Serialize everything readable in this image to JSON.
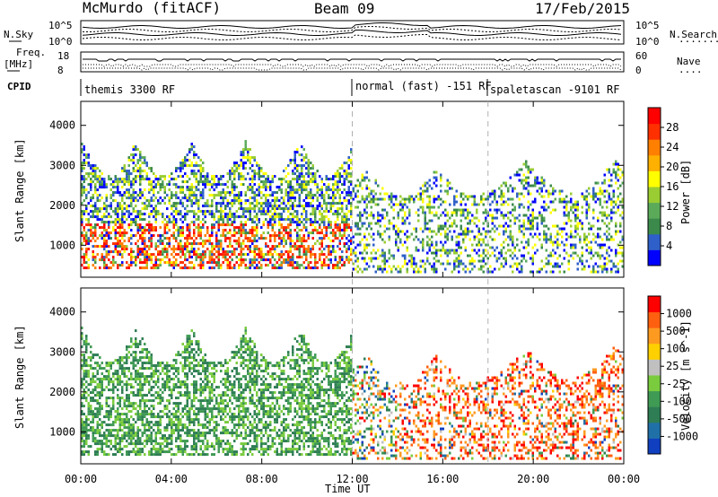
{
  "header": {
    "title": "McMurdo (fitACF)",
    "beam": "Beam 09",
    "date": "17/Feb/2015"
  },
  "status_panels": {
    "nsky_label": "N.Sky",
    "nsearch_label": "N.Search",
    "noise_ticks_left": [
      "10^5",
      "10^0"
    ],
    "noise_ticks_right": [
      "10^5",
      "10^0"
    ],
    "freq_label_1": "Freq.",
    "freq_label_2": "[MHz]",
    "freq_ticks": [
      "18",
      "8"
    ],
    "nave_label": "Nave",
    "nave_ticks": [
      "60",
      "0"
    ],
    "cpid_label": "CPID",
    "modes": [
      {
        "text": "themis 3300 RF"
      },
      {
        "text": "normal (fast) -151 RF"
      },
      {
        "text": "spaletascan -9101 RF"
      }
    ]
  },
  "colors": {
    "frame": "#000000",
    "dashed_line": "#b0b0b0",
    "power_scale": [
      "#0000ff",
      "#2f5fc8",
      "#3b8a4b",
      "#5aaa5a",
      "#9acd32",
      "#ffff00",
      "#ffb000",
      "#ff7f00",
      "#ff3000",
      "#ff0000"
    ],
    "velocity_scale": [
      "#1040c0",
      "#2070a8",
      "#2e7d54",
      "#3f9a54",
      "#7acc3e",
      "#c0c0c0",
      "#ffd000",
      "#ff9a20",
      "#ff6010",
      "#ff0000"
    ]
  },
  "x_axis": {
    "title": "Time UT",
    "ticks": [
      "00:00",
      "04:00",
      "08:00",
      "12:00",
      "16:00",
      "20:00",
      "00:00"
    ]
  },
  "chart_data": [
    {
      "type": "heatmap",
      "title": "",
      "quantity": "Power",
      "xlabel": "Time UT",
      "ylabel": "Slant Range [km]",
      "yticks": [
        1000,
        2000,
        3000,
        4000
      ],
      "ylim": [
        200,
        4600
      ],
      "xlim_hours": [
        0,
        24
      ],
      "colorbar": {
        "label": "Power [dB]",
        "ticks": [
          "28",
          "24",
          "20",
          "16",
          "12",
          "8",
          "4"
        ],
        "range": [
          0,
          30
        ]
      },
      "mode_boundaries_hours": [
        12,
        18
      ]
    },
    {
      "type": "heatmap",
      "title": "",
      "quantity": "Velocity",
      "xlabel": "Time UT",
      "ylabel": "Slant Range [km]",
      "yticks": [
        1000,
        2000,
        3000,
        4000
      ],
      "ylim": [
        200,
        4600
      ],
      "xlim_hours": [
        0,
        24
      ],
      "colorbar": {
        "label": "Velocity [m s^-1]",
        "ticks": [
          "1000",
          "500",
          "100",
          "25",
          "-25",
          "-100",
          "-500",
          "-1000"
        ]
      },
      "mode_boundaries_hours": [
        12,
        18
      ]
    }
  ],
  "legend_dots": {
    "nsearch": "·········",
    "nave": "····"
  }
}
